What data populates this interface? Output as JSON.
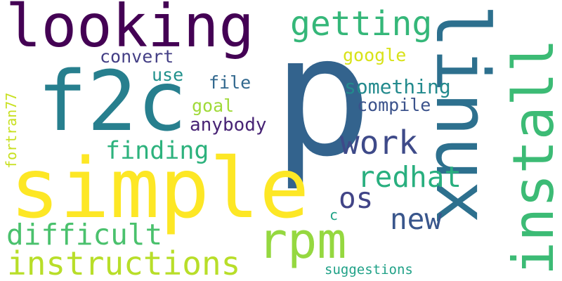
{
  "words": [
    {
      "text": "p",
      "color": "#33638d"
    },
    {
      "text": "simple",
      "color": "#fde725"
    },
    {
      "text": "linux",
      "color": "#2d708e"
    },
    {
      "text": "install",
      "color": "#3cbb75"
    },
    {
      "text": "looking",
      "color": "#440154"
    },
    {
      "text": "f2c",
      "color": "#277f8e"
    },
    {
      "text": "rpm",
      "color": "#95d840"
    },
    {
      "text": "instructions",
      "color": "#b8de29"
    },
    {
      "text": "getting",
      "color": "#35b779"
    },
    {
      "text": "difficult",
      "color": "#4ac16d"
    },
    {
      "text": "work",
      "color": "#3e4a89"
    },
    {
      "text": "finding",
      "color": "#2db27d"
    },
    {
      "text": "redhat",
      "color": "#29af7f"
    },
    {
      "text": "new",
      "color": "#39568c"
    },
    {
      "text": "os",
      "color": "#414487"
    },
    {
      "text": "convert",
      "color": "#433e85"
    },
    {
      "text": "google",
      "color": "#d8e219"
    },
    {
      "text": "something",
      "color": "#238a8d"
    },
    {
      "text": "use",
      "color": "#21918c"
    },
    {
      "text": "file",
      "color": "#31688e"
    },
    {
      "text": "compile",
      "color": "#3b528b"
    },
    {
      "text": "goal",
      "color": "#a0da39"
    },
    {
      "text": "anybody",
      "color": "#482475"
    },
    {
      "text": "fortran77",
      "color": "#c8e020"
    },
    {
      "text": "c",
      "color": "#20a386"
    },
    {
      "text": "suggestions",
      "color": "#1fa187"
    }
  ]
}
